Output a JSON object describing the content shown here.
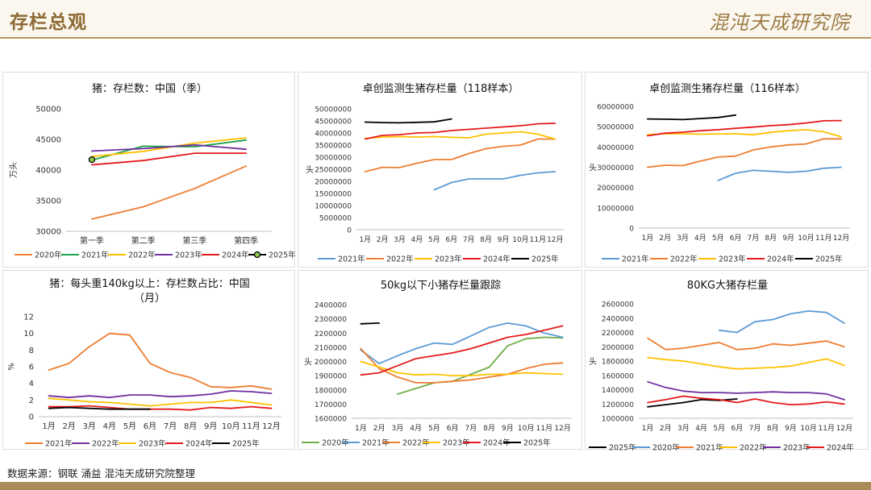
{
  "header": {
    "title": "存栏总观",
    "logo_text": "混沌天成研究院"
  },
  "footer": {
    "source": "数据来源：钢联 涌益 混沌天成研究院整理"
  },
  "chart_data": [
    {
      "id": "c1",
      "type": "line",
      "title": "猪：存栏数：中国（季）",
      "title2": "",
      "ylabel": "万头",
      "ylim": [
        30000,
        50000
      ],
      "yticks": [
        30000,
        35000,
        40000,
        45000,
        50000
      ],
      "categories": [
        "第一季",
        "第二季",
        "第三季",
        "第四季"
      ],
      "series": [
        {
          "name": "2020年",
          "color": "#ed7d31",
          "values": [
            32000,
            34000,
            37000,
            40650
          ]
        },
        {
          "name": "2021年",
          "color": "#1fa34a",
          "values": [
            41600,
            43900,
            43800,
            44900
          ]
        },
        {
          "name": "2022年",
          "color": "#ffc000",
          "values": [
            42200,
            43050,
            44400,
            45250
          ]
        },
        {
          "name": "2023年",
          "color": "#7030a0",
          "values": [
            43100,
            43500,
            44100,
            43400
          ]
        },
        {
          "name": "2024年",
          "color": "#e41a1c",
          "values": [
            40850,
            41550,
            42750,
            42750
          ]
        },
        {
          "name": "2025年",
          "color": "#000000",
          "values": [
            41700,
            null,
            null,
            null
          ],
          "marker": true
        }
      ]
    },
    {
      "id": "c2",
      "type": "line",
      "title": "卓创监测生猪存栏量（118样本）",
      "title2": "",
      "ylabel": "头",
      "ylim": [
        0,
        50000000
      ],
      "yticks": [
        0,
        5000000,
        10000000,
        15000000,
        20000000,
        25000000,
        30000000,
        35000000,
        40000000,
        45000000,
        50000000
      ],
      "categories": [
        "1月",
        "2月",
        "3月",
        "4月",
        "5月",
        "6月",
        "7月",
        "8月",
        "9月",
        "10月",
        "11月",
        "12月"
      ],
      "series": [
        {
          "name": "2021年",
          "color": "#5b9bd5",
          "values": [
            null,
            null,
            null,
            null,
            16500000,
            19500000,
            21000000,
            21000000,
            21000000,
            22500000,
            23500000,
            24000000
          ]
        },
        {
          "name": "2022年",
          "color": "#ed7d31",
          "values": [
            24000000,
            25800000,
            25700000,
            27500000,
            29000000,
            29000000,
            31500000,
            33500000,
            34500000,
            35000000,
            37500000,
            37500000
          ]
        },
        {
          "name": "2023年",
          "color": "#ffc000",
          "values": [
            37800000,
            38300000,
            38500000,
            38300000,
            38500000,
            38200000,
            38000000,
            39500000,
            40000000,
            40500000,
            39500000,
            37500000
          ]
        },
        {
          "name": "2024年",
          "color": "#e41a1c",
          "values": [
            37500000,
            39000000,
            39300000,
            40000000,
            40200000,
            41000000,
            41500000,
            42000000,
            42500000,
            43000000,
            43800000,
            44000000
          ]
        },
        {
          "name": "2025年",
          "color": "#000000",
          "values": [
            44500000,
            44300000,
            44200000,
            44400000,
            44600000,
            45800000,
            null,
            null,
            null,
            null,
            null,
            null
          ]
        }
      ]
    },
    {
      "id": "c3",
      "type": "line",
      "title": "卓创监测生猪存栏量（116样本）",
      "title2": "",
      "ylabel": "头",
      "ylim": [
        0,
        60000000
      ],
      "yticks": [
        0,
        10000000,
        20000000,
        30000000,
        40000000,
        50000000,
        60000000
      ],
      "categories": [
        "1月",
        "2月",
        "3月",
        "4月",
        "5月",
        "6月",
        "7月",
        "8月",
        "9月",
        "10月",
        "11月",
        "12月"
      ],
      "series": [
        {
          "name": "2021年",
          "color": "#5b9bd5",
          "values": [
            null,
            null,
            null,
            null,
            23500000,
            27000000,
            28500000,
            28000000,
            27500000,
            28000000,
            29500000,
            30000000
          ]
        },
        {
          "name": "2022年",
          "color": "#ed7d31",
          "values": [
            30000000,
            31000000,
            30800000,
            33000000,
            35000000,
            35500000,
            38500000,
            40000000,
            41000000,
            41500000,
            44000000,
            44000000
          ]
        },
        {
          "name": "2023年",
          "color": "#ffc000",
          "values": [
            46000000,
            46500000,
            46500000,
            46300000,
            46400000,
            46500000,
            46000000,
            47200000,
            48000000,
            48500000,
            47500000,
            45000000
          ]
        },
        {
          "name": "2024年",
          "color": "#e41a1c",
          "values": [
            45500000,
            46800000,
            47300000,
            48000000,
            48500000,
            49200000,
            49800000,
            50500000,
            51000000,
            51800000,
            52900000,
            53000000
          ]
        },
        {
          "name": "2025年",
          "color": "#000000",
          "values": [
            53800000,
            53700000,
            53500000,
            54000000,
            54500000,
            55700000,
            null,
            null,
            null,
            null,
            null,
            null
          ]
        }
      ]
    },
    {
      "id": "c4",
      "type": "line",
      "title": "猪：每头重140kg以上：存栏数占比：中国",
      "title2": "（月）",
      "ylabel": "%",
      "ylim": [
        0,
        12
      ],
      "yticks": [
        0,
        2,
        4,
        6,
        8,
        10,
        12
      ],
      "categories": [
        "1月",
        "2月",
        "3月",
        "4月",
        "5月",
        "6月",
        "7月",
        "8月",
        "9月",
        "10月",
        "11月",
        "12月"
      ],
      "series": [
        {
          "name": "2021年",
          "color": "#ed7d31",
          "values": [
            5.6,
            6.4,
            8.4,
            10,
            9.8,
            6.4,
            5.3,
            4.7,
            3.6,
            3.5,
            3.7,
            3.3
          ]
        },
        {
          "name": "2022年",
          "color": "#7030a0",
          "values": [
            2.5,
            2.3,
            2.5,
            2.3,
            2.6,
            2.6,
            2.4,
            2.5,
            2.7,
            3.1,
            3.0,
            2.8
          ]
        },
        {
          "name": "2023年",
          "color": "#ffc000",
          "values": [
            2.2,
            2.0,
            1.8,
            1.7,
            1.5,
            1.3,
            1.5,
            1.7,
            1.7,
            2.0,
            1.7,
            1.4
          ]
        },
        {
          "name": "2024年",
          "color": "#e41a1c",
          "values": [
            1.2,
            1.2,
            1.3,
            1.1,
            0.9,
            0.9,
            0.9,
            0.8,
            1.1,
            1.0,
            1.2,
            1.0
          ]
        },
        {
          "name": "2025年",
          "color": "#000000",
          "values": [
            1.0,
            1.1,
            1.0,
            0.9,
            0.9,
            0.9,
            null,
            null,
            null,
            null,
            null,
            null
          ]
        }
      ]
    },
    {
      "id": "c5",
      "type": "line",
      "title": "50kg以下小猪存栏量跟踪",
      "title2": "",
      "ylabel": "头",
      "ylim": [
        1600000,
        2400000
      ],
      "yticks": [
        1600000,
        1700000,
        1800000,
        1900000,
        2000000,
        2100000,
        2200000,
        2300000,
        2400000
      ],
      "categories": [
        "1月",
        "2月",
        "3月",
        "4月",
        "5月",
        "6月",
        "7月",
        "8月",
        "9月",
        "10月",
        "11月",
        "12月"
      ],
      "series": [
        {
          "name": "2020年",
          "color": "#70ad47",
          "values": [
            null,
            null,
            1770000,
            1810000,
            1850000,
            1860000,
            1910000,
            1960000,
            2110000,
            2160000,
            2170000,
            2165000
          ]
        },
        {
          "name": "2021年",
          "color": "#5b9bd5",
          "values": [
            2080000,
            1985000,
            2040000,
            2090000,
            2130000,
            2120000,
            2180000,
            2240000,
            2270000,
            2250000,
            2200000,
            2170000
          ]
        },
        {
          "name": "2022年",
          "color": "#ed7d31",
          "values": [
            2090000,
            1950000,
            1890000,
            1850000,
            1850000,
            1860000,
            1870000,
            1890000,
            1910000,
            1950000,
            1980000,
            1990000
          ]
        },
        {
          "name": "2023年",
          "color": "#ffc000",
          "values": [
            2000000,
            1960000,
            1920000,
            1905000,
            1910000,
            1900000,
            1900000,
            1910000,
            1910000,
            1920000,
            1915000,
            1910000
          ]
        },
        {
          "name": "2024年",
          "color": "#e41a1c",
          "values": [
            1905000,
            1920000,
            1970000,
            2020000,
            2040000,
            2060000,
            2090000,
            2130000,
            2170000,
            2190000,
            2220000,
            2250000
          ]
        },
        {
          "name": "2025年",
          "color": "#000000",
          "values": [
            2265000,
            2270000,
            null,
            null,
            null,
            null,
            null,
            null,
            null,
            null,
            null,
            null
          ]
        }
      ]
    },
    {
      "id": "c6",
      "type": "line",
      "title": "80KG大猪存栏量",
      "title2": "",
      "ylabel": "头",
      "ylim": [
        1000000,
        2600000
      ],
      "yticks": [
        1000000,
        1200000,
        1400000,
        1600000,
        1800000,
        2000000,
        2200000,
        2400000,
        2600000
      ],
      "categories": [
        "1月",
        "2月",
        "3月",
        "4月",
        "5月",
        "6月",
        "7月",
        "8月",
        "9月",
        "10月",
        "11月",
        "12月"
      ],
      "series": [
        {
          "name": "2025年",
          "color": "#000000",
          "values": [
            1160000,
            1190000,
            1220000,
            1260000,
            1250000,
            1270000,
            null,
            null,
            null,
            null,
            null,
            null
          ]
        },
        {
          "name": "2020年",
          "color": "#5b9bd5",
          "values": [
            null,
            null,
            null,
            null,
            2230000,
            2200000,
            2350000,
            2380000,
            2460000,
            2500000,
            2480000,
            2330000
          ]
        },
        {
          "name": "2021年",
          "color": "#ed7d31",
          "values": [
            2120000,
            1960000,
            1980000,
            2020000,
            2060000,
            1960000,
            1980000,
            2040000,
            2020000,
            2050000,
            2080000,
            2000000
          ]
        },
        {
          "name": "2022年",
          "color": "#ffc000",
          "values": [
            1850000,
            1820000,
            1800000,
            1760000,
            1720000,
            1690000,
            1700000,
            1710000,
            1730000,
            1780000,
            1830000,
            1740000
          ]
        },
        {
          "name": "2023年",
          "color": "#7030a0",
          "values": [
            1510000,
            1430000,
            1380000,
            1360000,
            1360000,
            1350000,
            1360000,
            1370000,
            1360000,
            1360000,
            1340000,
            1260000
          ]
        },
        {
          "name": "2024年",
          "color": "#e41a1c",
          "values": [
            1220000,
            1260000,
            1310000,
            1280000,
            1260000,
            1220000,
            1270000,
            1220000,
            1190000,
            1200000,
            1230000,
            1200000
          ]
        }
      ]
    }
  ]
}
